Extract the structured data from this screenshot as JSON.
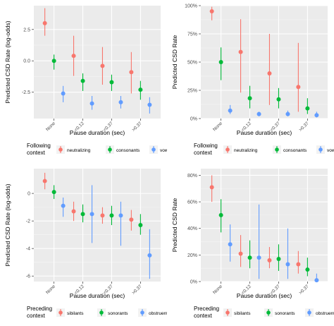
{
  "legends": {
    "following": {
      "title_line1": "Following",
      "title_line2": "context",
      "items": [
        "neutralizing",
        "consonants",
        "vowels"
      ]
    },
    "preceding": {
      "title_line1": "Preceding",
      "title_line2": "context",
      "items": [
        "sibilants",
        "sonorants",
        "obstruents"
      ]
    }
  },
  "colors": {
    "red": "#F8766D",
    "green": "#00BA38",
    "blue": "#619CFF",
    "panel_bg": "#EBEBEB",
    "grid": "#FFFFFF"
  },
  "chart_data": [
    {
      "id": "top-left",
      "type": "scatter",
      "ylabel": "Predicted CSD Rate (log-odds)",
      "xlabel": "Pause duration (sec)",
      "categories": [
        "None",
        "<0.12",
        "<0.37",
        ">0.37"
      ],
      "ylim": [
        -4.6,
        4.4
      ],
      "yticks": [
        2.5,
        0,
        -2.5
      ],
      "yticklabels": [
        "2.5",
        "0.0",
        "-2.5"
      ],
      "legend": "following",
      "series": [
        {
          "name": "neutralizing",
          "color": "#F8766D",
          "values": [
            3.0,
            0.4,
            -0.4,
            -0.9
          ],
          "lower": [
            2.0,
            -1.2,
            -1.9,
            -2.6
          ],
          "upper": [
            4.2,
            2.0,
            1.1,
            0.7
          ]
        },
        {
          "name": "consonants",
          "color": "#00BA38",
          "values": [
            0.0,
            -1.6,
            -1.7,
            -2.3
          ],
          "lower": [
            -0.7,
            -2.4,
            -2.4,
            -3.1
          ],
          "upper": [
            0.5,
            -1.0,
            -1.1,
            -1.6
          ]
        },
        {
          "name": "vowels",
          "color": "#619CFF",
          "values": [
            -2.6,
            -3.4,
            -3.3,
            -3.5
          ],
          "lower": [
            -3.3,
            -3.9,
            -3.8,
            -4.2
          ],
          "upper": [
            -2.0,
            -2.8,
            -2.8,
            -2.9
          ]
        }
      ]
    },
    {
      "id": "top-right",
      "type": "scatter",
      "ylabel": "Predicted CSD Rate",
      "xlabel": "Pause duration (sec)",
      "categories": [
        "None",
        "<0.12",
        "<0.37",
        ">0.37"
      ],
      "ylim": [
        0,
        1.0
      ],
      "yticks": [
        0,
        0.25,
        0.5,
        0.75,
        1.0
      ],
      "yticklabels": [
        "0%",
        "25%",
        "50%",
        "75%",
        "100%"
      ],
      "legend": "following",
      "series": [
        {
          "name": "neutralizing",
          "color": "#F8766D",
          "values": [
            0.95,
            0.59,
            0.4,
            0.28
          ],
          "lower": [
            0.87,
            0.23,
            0.12,
            0.06
          ],
          "upper": [
            0.99,
            0.88,
            0.75,
            0.67
          ]
        },
        {
          "name": "consonants",
          "color": "#00BA38",
          "values": [
            0.5,
            0.18,
            0.17,
            0.09
          ],
          "lower": [
            0.34,
            0.09,
            0.09,
            0.04
          ],
          "upper": [
            0.63,
            0.29,
            0.27,
            0.18
          ]
        },
        {
          "name": "vowels",
          "color": "#619CFF",
          "values": [
            0.07,
            0.04,
            0.04,
            0.03
          ],
          "lower": [
            0.04,
            0.02,
            0.02,
            0.01
          ],
          "upper": [
            0.12,
            0.06,
            0.07,
            0.06
          ]
        }
      ]
    },
    {
      "id": "bottom-left",
      "type": "scatter",
      "ylabel": "Predicted CSD Rate (log-odds)",
      "xlabel": "Pause duration (sec)",
      "categories": [
        "None",
        "<0.12",
        "<0.37",
        ">0.37"
      ],
      "ylim": [
        -6.4,
        1.8
      ],
      "yticks": [
        0,
        -2,
        -4,
        -6
      ],
      "yticklabels": [
        "0",
        "-2",
        "-4",
        "-6"
      ],
      "legend": "preceding",
      "series": [
        {
          "name": "sibilants",
          "color": "#F8766D",
          "values": [
            0.9,
            -1.3,
            -1.6,
            -1.9
          ],
          "lower": [
            0.3,
            -2.0,
            -2.2,
            -2.7
          ],
          "upper": [
            1.5,
            -0.6,
            -1.0,
            -1.2
          ]
        },
        {
          "name": "sonorants",
          "color": "#00BA38",
          "values": [
            0.1,
            -1.5,
            -1.6,
            -2.3
          ],
          "lower": [
            -0.4,
            -2.1,
            -2.3,
            -3.0
          ],
          "upper": [
            0.6,
            -0.8,
            -0.9,
            -1.5
          ]
        },
        {
          "name": "obstruents",
          "color": "#619CFF",
          "values": [
            -0.9,
            -1.5,
            -1.6,
            -4.5
          ],
          "lower": [
            -1.7,
            -3.6,
            -3.8,
            -6.2
          ],
          "upper": [
            -0.3,
            0.6,
            -0.6,
            -2.6
          ]
        }
      ]
    },
    {
      "id": "bottom-right",
      "type": "scatter",
      "ylabel": "Predicted CSD Rate",
      "xlabel": "Pause duration (sec)",
      "categories": [
        "None",
        "<0.12",
        "<0.37",
        ">0.37"
      ],
      "ylim": [
        0,
        0.85
      ],
      "yticks": [
        0,
        0.2,
        0.4,
        0.6,
        0.8
      ],
      "yticklabels": [
        "0%",
        "20%",
        "40%",
        "60%",
        "80%"
      ],
      "legend": "preceding",
      "series": [
        {
          "name": "sibilants",
          "color": "#F8766D",
          "values": [
            0.71,
            0.21,
            0.16,
            0.13
          ],
          "lower": [
            0.6,
            0.11,
            0.1,
            0.06
          ],
          "upper": [
            0.8,
            0.35,
            0.26,
            0.23
          ]
        },
        {
          "name": "sonorants",
          "color": "#00BA38",
          "values": [
            0.5,
            0.18,
            0.17,
            0.09
          ],
          "lower": [
            0.37,
            0.1,
            0.08,
            0.04
          ],
          "upper": [
            0.62,
            0.31,
            0.28,
            0.18
          ]
        },
        {
          "name": "obstruents",
          "color": "#619CFF",
          "values": [
            0.28,
            0.18,
            0.13,
            0.01
          ],
          "lower": [
            0.15,
            0.02,
            0.02,
            0.0
          ],
          "upper": [
            0.43,
            0.58,
            0.4,
            0.06
          ]
        }
      ]
    }
  ]
}
